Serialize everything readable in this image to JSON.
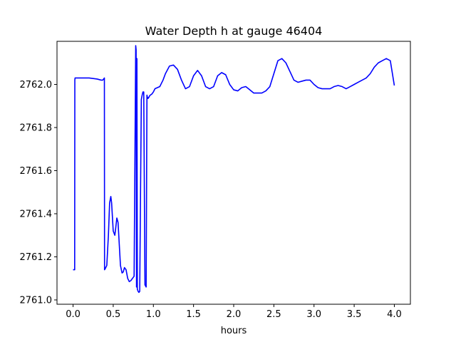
{
  "chart_data": {
    "type": "line",
    "title": "Water Depth h at gauge 46404",
    "xlabel": "hours",
    "ylabel": "",
    "xlim": [
      -0.2,
      4.2
    ],
    "ylim": [
      2760.98,
      2762.2
    ],
    "xticks": [
      0.0,
      0.5,
      1.0,
      1.5,
      2.0,
      2.5,
      3.0,
      3.5,
      4.0
    ],
    "xtick_labels": [
      "0.0",
      "0.5",
      "1.0",
      "1.5",
      "2.0",
      "2.5",
      "3.0",
      "3.5",
      "4.0"
    ],
    "yticks": [
      2761.0,
      2761.2,
      2761.4,
      2761.6,
      2761.8,
      2762.0
    ],
    "ytick_labels": [
      "2761.0",
      "2761.2",
      "2761.4",
      "2761.6",
      "2761.8",
      "2762.0"
    ],
    "grid": false,
    "legend": "none",
    "series": [
      {
        "color": "#0000ff",
        "x": [
          0.0,
          0.02,
          0.022,
          0.025,
          0.1,
          0.2,
          0.3,
          0.35,
          0.37,
          0.39,
          0.392,
          0.4,
          0.42,
          0.44,
          0.455,
          0.47,
          0.48,
          0.5,
          0.52,
          0.53,
          0.545,
          0.56,
          0.575,
          0.59,
          0.61,
          0.625,
          0.64,
          0.66,
          0.68,
          0.7,
          0.72,
          0.74,
          0.76,
          0.78,
          0.785,
          0.79,
          0.795,
          0.8,
          0.81,
          0.82,
          0.83,
          0.84,
          0.85,
          0.86,
          0.87,
          0.88,
          0.895,
          0.91,
          0.92,
          0.925,
          0.93,
          0.935,
          0.94,
          0.945,
          0.95,
          0.96,
          0.98,
          1.0,
          1.02,
          1.05,
          1.08,
          1.12,
          1.15,
          1.2,
          1.25,
          1.3,
          1.35,
          1.4,
          1.45,
          1.5,
          1.55,
          1.6,
          1.65,
          1.7,
          1.75,
          1.8,
          1.85,
          1.9,
          1.95,
          2.0,
          2.05,
          2.1,
          2.15,
          2.2,
          2.25,
          2.3,
          2.35,
          2.4,
          2.45,
          2.5,
          2.55,
          2.6,
          2.65,
          2.7,
          2.75,
          2.8,
          2.85,
          2.9,
          2.95,
          3.0,
          3.05,
          3.1,
          3.15,
          3.2,
          3.25,
          3.3,
          3.35,
          3.4,
          3.45,
          3.5,
          3.55,
          3.6,
          3.65,
          3.7,
          3.75,
          3.8,
          3.85,
          3.9,
          3.95,
          4.0
        ],
        "y": [
          2761.14,
          2761.14,
          2762.02,
          2762.03,
          2762.03,
          2762.03,
          2762.025,
          2762.02,
          2762.02,
          2762.03,
          2761.14,
          2761.145,
          2761.16,
          2761.3,
          2761.45,
          2761.48,
          2761.45,
          2761.32,
          2761.3,
          2761.33,
          2761.38,
          2761.36,
          2761.26,
          2761.16,
          2761.125,
          2761.13,
          2761.15,
          2761.14,
          2761.1,
          2761.085,
          2761.09,
          2761.1,
          2761.11,
          2762.18,
          2762.16,
          2761.06,
          2762.12,
          2761.05,
          2761.04,
          2761.035,
          2761.04,
          2761.5,
          2761.93,
          2761.95,
          2761.965,
          2761.965,
          2761.07,
          2761.06,
          2761.95,
          2761.94,
          2761.935,
          2761.935,
          2761.94,
          2761.94,
          2761.945,
          2761.95,
          2761.955,
          2761.965,
          2761.98,
          2761.985,
          2761.99,
          2762.02,
          2762.05,
          2762.085,
          2762.09,
          2762.07,
          2762.02,
          2761.98,
          2761.99,
          2762.04,
          2762.065,
          2762.04,
          2761.99,
          2761.98,
          2761.99,
          2762.04,
          2762.055,
          2762.045,
          2762.0,
          2761.975,
          2761.97,
          2761.985,
          2761.99,
          2761.975,
          2761.96,
          2761.96,
          2761.96,
          2761.97,
          2761.99,
          2762.05,
          2762.11,
          2762.12,
          2762.1,
          2762.06,
          2762.02,
          2762.01,
          2762.015,
          2762.02,
          2762.02,
          2762.0,
          2761.985,
          2761.98,
          2761.98,
          2761.98,
          2761.99,
          2761.995,
          2761.99,
          2761.98,
          2761.99,
          2762.0,
          2762.01,
          2762.02,
          2762.03,
          2762.05,
          2762.08,
          2762.1,
          2762.11,
          2762.12,
          2762.11,
          2761.995
        ]
      }
    ]
  }
}
